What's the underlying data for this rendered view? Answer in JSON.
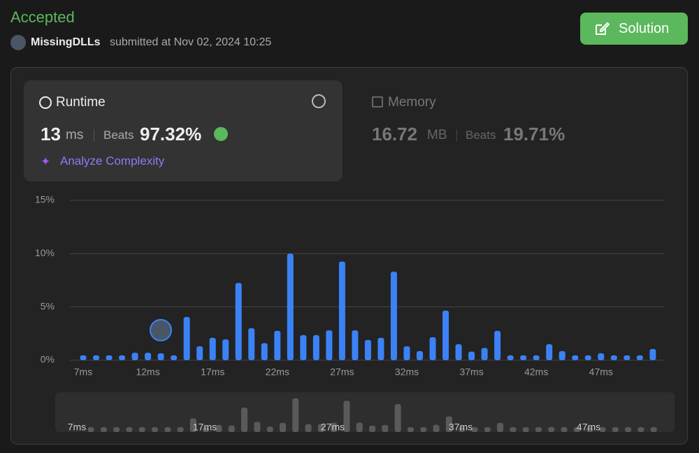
{
  "header": {
    "status": "Accepted",
    "user": "MissingDLLs",
    "submitted": "submitted at Nov 02, 2024 10:25",
    "button": "Solution"
  },
  "runtime": {
    "label": "Runtime",
    "value": "13",
    "unit": "ms",
    "beats_label": "Beats",
    "beats": "97.32%",
    "analyze": "Analyze Complexity"
  },
  "memory": {
    "label": "Memory",
    "value": "16.72",
    "unit": "MB",
    "beats_label": "Beats",
    "beats": "19.71%"
  },
  "chart_data": {
    "type": "bar",
    "color": "#3b82f6",
    "mini_color": "#5a5a5a",
    "grid": true,
    "categories": [
      "7ms",
      null,
      null,
      null,
      null,
      "12ms",
      null,
      null,
      null,
      null,
      "17ms",
      null,
      null,
      null,
      null,
      "22ms",
      null,
      null,
      null,
      null,
      "27ms",
      null,
      null,
      null,
      null,
      "32ms",
      null,
      null,
      null,
      null,
      "37ms",
      null,
      null,
      null,
      null,
      "42ms",
      null,
      null,
      null,
      null,
      "47ms",
      null,
      null,
      null,
      null
    ],
    "values": [
      0.45,
      0.45,
      0.45,
      0.45,
      0.7,
      0.7,
      0.65,
      0.45,
      4.05,
      1.3,
      2.1,
      1.95,
      7.25,
      3.0,
      1.6,
      2.75,
      10.0,
      2.35,
      2.35,
      2.8,
      9.25,
      2.8,
      1.9,
      2.1,
      8.3,
      1.3,
      0.85,
      2.15,
      4.65,
      1.5,
      0.8,
      1.15,
      2.75,
      0.45,
      0.45,
      0.45,
      1.5,
      0.85,
      0.45,
      0.45,
      0.65,
      0.45,
      0.45,
      0.45,
      1.05
    ],
    "ylim": [
      0,
      15
    ],
    "yticks": [
      {
        "value": 0,
        "label": "0%"
      },
      {
        "value": 5,
        "label": "5%"
      },
      {
        "value": 10,
        "label": "10%"
      },
      {
        "value": 15,
        "label": "15%"
      }
    ]
  }
}
